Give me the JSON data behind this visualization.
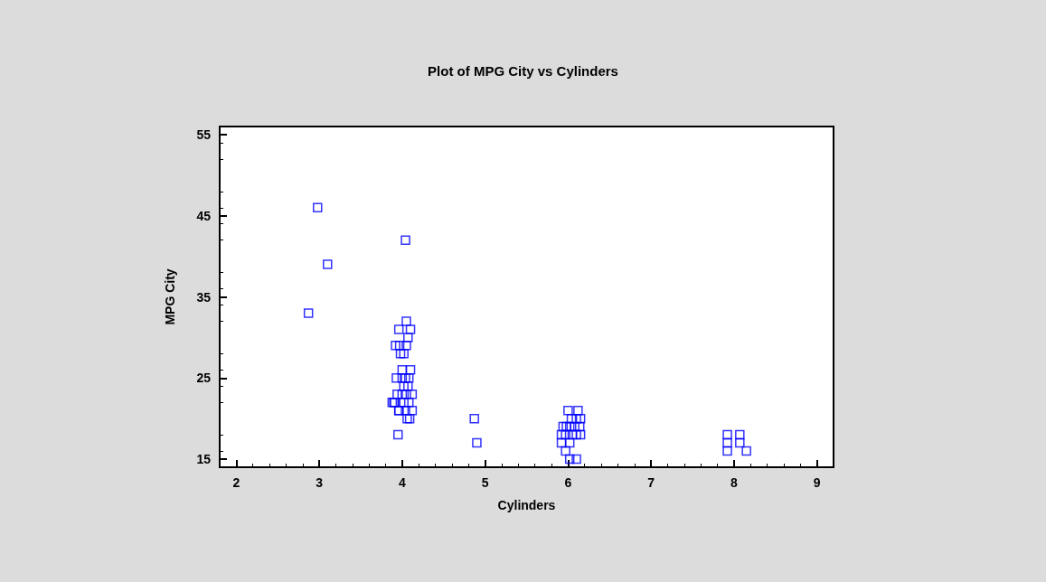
{
  "chart_data": {
    "type": "scatter",
    "title": "Plot of MPG City vs Cylinders",
    "xlabel": "Cylinders",
    "ylabel": "MPG City",
    "xlim": [
      1.8,
      9.2
    ],
    "xticks": [
      2,
      3,
      4,
      5,
      6,
      7,
      8,
      9
    ],
    "ylim": [
      14,
      56
    ],
    "yticks": [
      15,
      25,
      35,
      45,
      55
    ],
    "grid": false,
    "marker": "square",
    "series": [
      {
        "color": "#0000ff",
        "x": [
          2.87,
          2.98,
          3.1,
          4.04,
          4.05,
          3.96,
          4.1,
          4.07,
          3.92,
          3.97,
          4.05,
          3.98,
          4.02,
          4.0,
          4.1,
          3.93,
          4.0,
          4.04,
          4.08,
          3.9,
          4.02,
          4.07,
          3.94,
          4.0,
          4.05,
          4.12,
          3.88,
          3.91,
          3.96,
          4.02,
          4.08,
          3.96,
          4.04,
          4.12,
          4.06,
          4.09,
          3.95,
          4.87,
          4.9,
          6.0,
          6.12,
          6.04,
          6.1,
          6.15,
          5.94,
          5.98,
          6.02,
          6.08,
          6.14,
          5.92,
          5.97,
          6.05,
          6.1,
          5.92,
          6.02,
          6.15,
          5.97,
          6.02,
          6.1,
          7.92,
          7.92,
          7.92,
          8.07,
          8.07,
          8.15
        ],
        "values": [
          33,
          46,
          39,
          42,
          32,
          31,
          31,
          30,
          29,
          29,
          29,
          28,
          28,
          26,
          26,
          25,
          25,
          25,
          25,
          22,
          24,
          24,
          23,
          23,
          23,
          23,
          22,
          22,
          21,
          22,
          22,
          21,
          21,
          21,
          20,
          20,
          18,
          20,
          17,
          21,
          21,
          20,
          20,
          20,
          19,
          19,
          19,
          19,
          19,
          18,
          18,
          18,
          18,
          17,
          17,
          18,
          16,
          15,
          15,
          18,
          17,
          16,
          18,
          17,
          16
        ]
      }
    ]
  }
}
